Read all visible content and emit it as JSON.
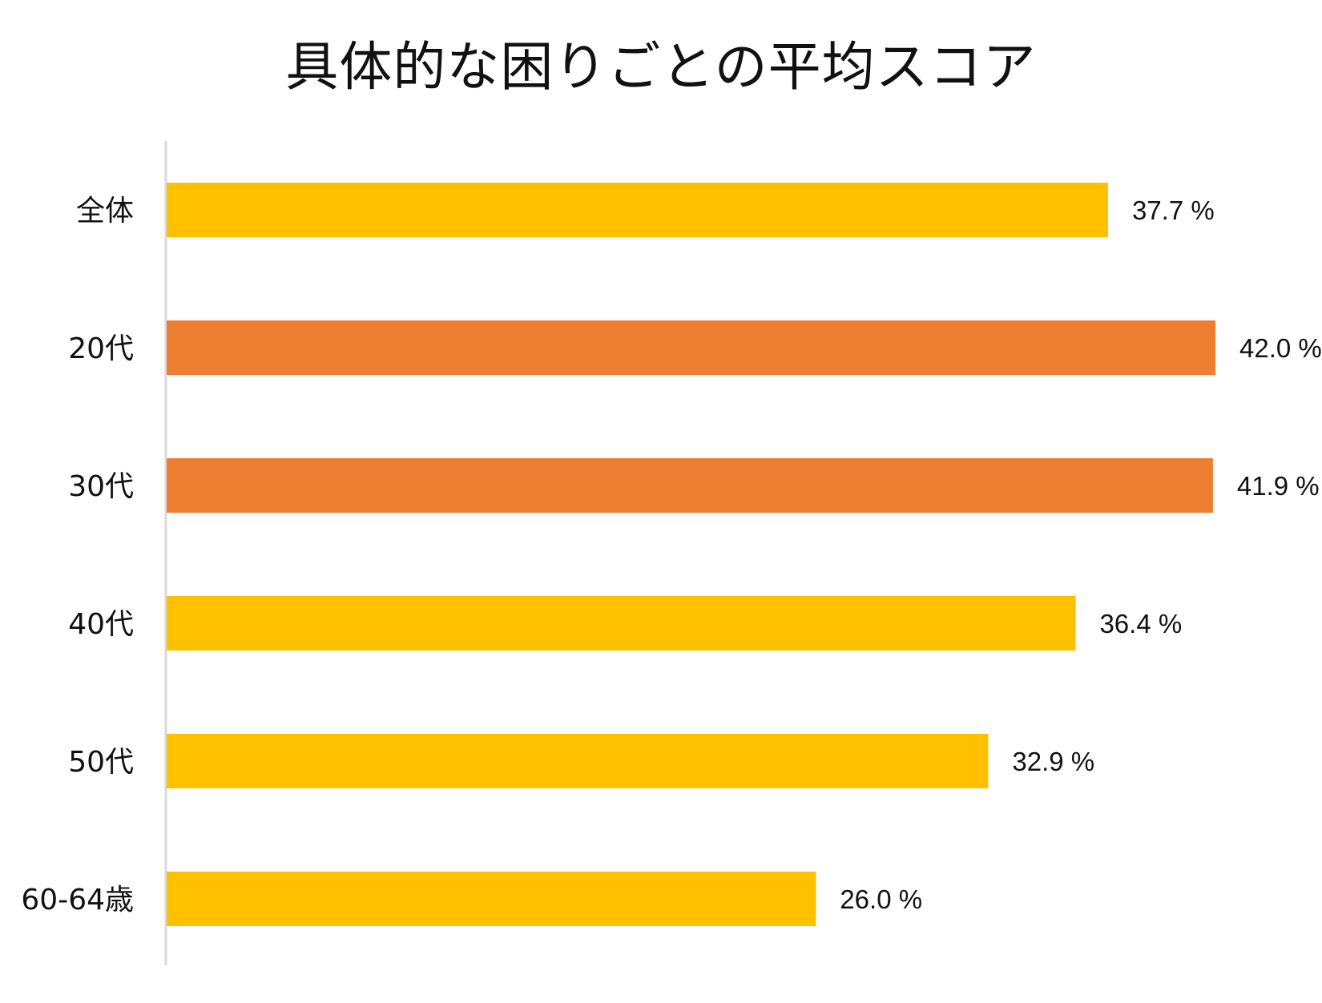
{
  "chart_data": {
    "type": "bar",
    "orientation": "horizontal",
    "title": "具体的な困りごとの平均スコア",
    "categories": [
      "全体",
      "20代",
      "30代",
      "40代",
      "50代",
      "60-64歳"
    ],
    "values": [
      37.7,
      42.0,
      41.9,
      36.4,
      32.9,
      26.0
    ],
    "value_labels": [
      "37.7 %",
      "42.0 %",
      "41.9 %",
      "36.4 %",
      "32.9 %",
      "26.0 %"
    ],
    "bar_colors": [
      "#FFC000",
      "#ED7D31",
      "#ED7D31",
      "#FFC000",
      "#FFC000",
      "#FFC000"
    ],
    "xlim": [
      0,
      42.0
    ],
    "xlabel": "",
    "ylabel": "",
    "grid": false,
    "legend": "none"
  },
  "colors": {
    "highlight": "#ED7D31",
    "default": "#FFC000",
    "axis": "#d9d9d9"
  }
}
